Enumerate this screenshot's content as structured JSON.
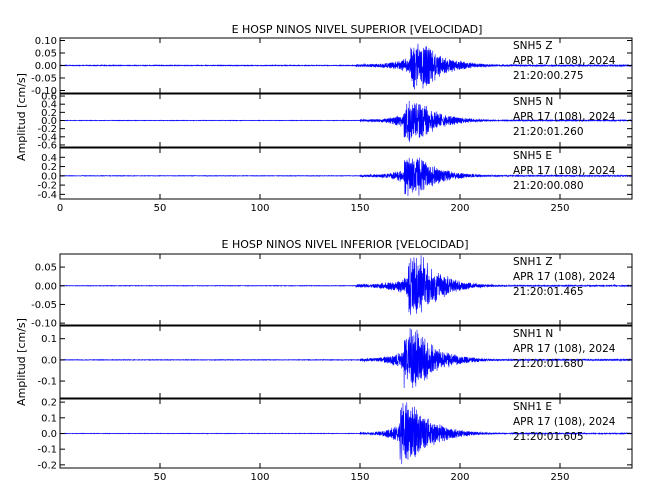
{
  "colors": {
    "trace": "#0000ff",
    "axes": "#000000",
    "background": "#ffffff"
  },
  "chart_data": [
    {
      "type": "line",
      "title": "E HOSP NINOS NIVEL SUPERIOR [VELOCIDAD]",
      "ylabel": "Amplitud [cm/s]",
      "xlabel": "",
      "xlim": [
        0,
        286
      ],
      "xticks": [
        "0",
        "50",
        "100",
        "150",
        "200",
        "250"
      ],
      "xtick_values": [
        0,
        50,
        100,
        150,
        200,
        250
      ],
      "grid": false,
      "panels": [
        {
          "channel_label": "SNH5   Z",
          "date_label": "APR 17 (108), 2024",
          "time_label": "21:20:00.275",
          "ylim": [
            -0.11,
            0.11
          ],
          "yticks": [
            "0.10",
            "0.05",
            "0.00",
            "-0.05",
            "-0.10"
          ],
          "ytick_values": [
            0.1,
            0.05,
            0,
            -0.05,
            -0.1
          ],
          "noise_amplitude": 0.002,
          "onset": 148,
          "onset_amplitude": 0.006,
          "peak_time": 179,
          "peak_amplitude": 0.1
        },
        {
          "channel_label": "SNH5   N",
          "date_label": "APR 17 (108), 2024",
          "time_label": "21:20:01.260",
          "ylim": [
            -0.65,
            0.65
          ],
          "yticks": [
            "0.6",
            "0.4",
            "0.2",
            "0.0",
            "-0.2",
            "-0.4",
            "-0.6"
          ],
          "ytick_values": [
            0.6,
            0.4,
            0.2,
            0,
            -0.2,
            -0.4,
            -0.6
          ],
          "noise_amplitude": 0.008,
          "onset": 150,
          "onset_amplitude": 0.03,
          "peak_time": 176,
          "peak_amplitude": 0.55
        },
        {
          "channel_label": "SNH5   E",
          "date_label": "APR 17 (108), 2024",
          "time_label": "21:20:00.080",
          "ylim": [
            -0.5,
            0.6
          ],
          "yticks": [
            "0.4",
            "0.2",
            "0.0",
            "-0.2",
            "-0.4"
          ],
          "ytick_values": [
            0.4,
            0.2,
            0,
            -0.2,
            -0.4
          ],
          "noise_amplitude": 0.008,
          "onset": 150,
          "onset_amplitude": 0.03,
          "peak_time": 176,
          "peak_amplitude": 0.45
        }
      ]
    },
    {
      "type": "line",
      "title": "E HOSP NINOS NIVEL INFERIOR [VELOCIDAD]",
      "ylabel": "Amplitud  [cm/s]",
      "xlabel": "",
      "xlim": [
        0,
        286
      ],
      "xticks": [
        "50",
        "100",
        "150",
        "200",
        "250"
      ],
      "xtick_values": [
        50,
        100,
        150,
        200,
        250
      ],
      "grid": false,
      "panels": [
        {
          "channel_label": "SNH1   Z",
          "date_label": "APR 17 (108), 2024",
          "time_label": "21:20:01.465",
          "ylim": [
            -0.105,
            0.085
          ],
          "yticks": [
            "0.05",
            "0.00",
            "-0.05",
            "-0.10"
          ],
          "ytick_values": [
            0.05,
            0,
            -0.05,
            -0.1
          ],
          "noise_amplitude": 0.001,
          "onset": 148,
          "onset_amplitude": 0.005,
          "peak_time": 178,
          "peak_amplitude": 0.085
        },
        {
          "channel_label": "SNH1   N",
          "date_label": "APR 17 (108), 2024",
          "time_label": "21:20:01.680",
          "ylim": [
            -0.18,
            0.16
          ],
          "yticks": [
            "0.1",
            "0.0",
            "-0.1"
          ],
          "ytick_values": [
            0.1,
            0,
            -0.1
          ],
          "noise_amplitude": 0.002,
          "onset": 150,
          "onset_amplitude": 0.008,
          "peak_time": 176,
          "peak_amplitude": 0.15
        },
        {
          "channel_label": "SNH1   E",
          "date_label": "APR 17 (108), 2024",
          "time_label": "21:20:01.605",
          "ylim": [
            -0.22,
            0.22
          ],
          "yticks": [
            "0.2",
            "0.1",
            "0.0",
            "-0.1",
            "-0.2"
          ],
          "ytick_values": [
            0.2,
            0.1,
            0,
            -0.1,
            -0.2
          ],
          "noise_amplitude": 0.002,
          "onset": 150,
          "onset_amplitude": 0.008,
          "peak_time": 174,
          "peak_amplitude": 0.2
        }
      ]
    }
  ]
}
